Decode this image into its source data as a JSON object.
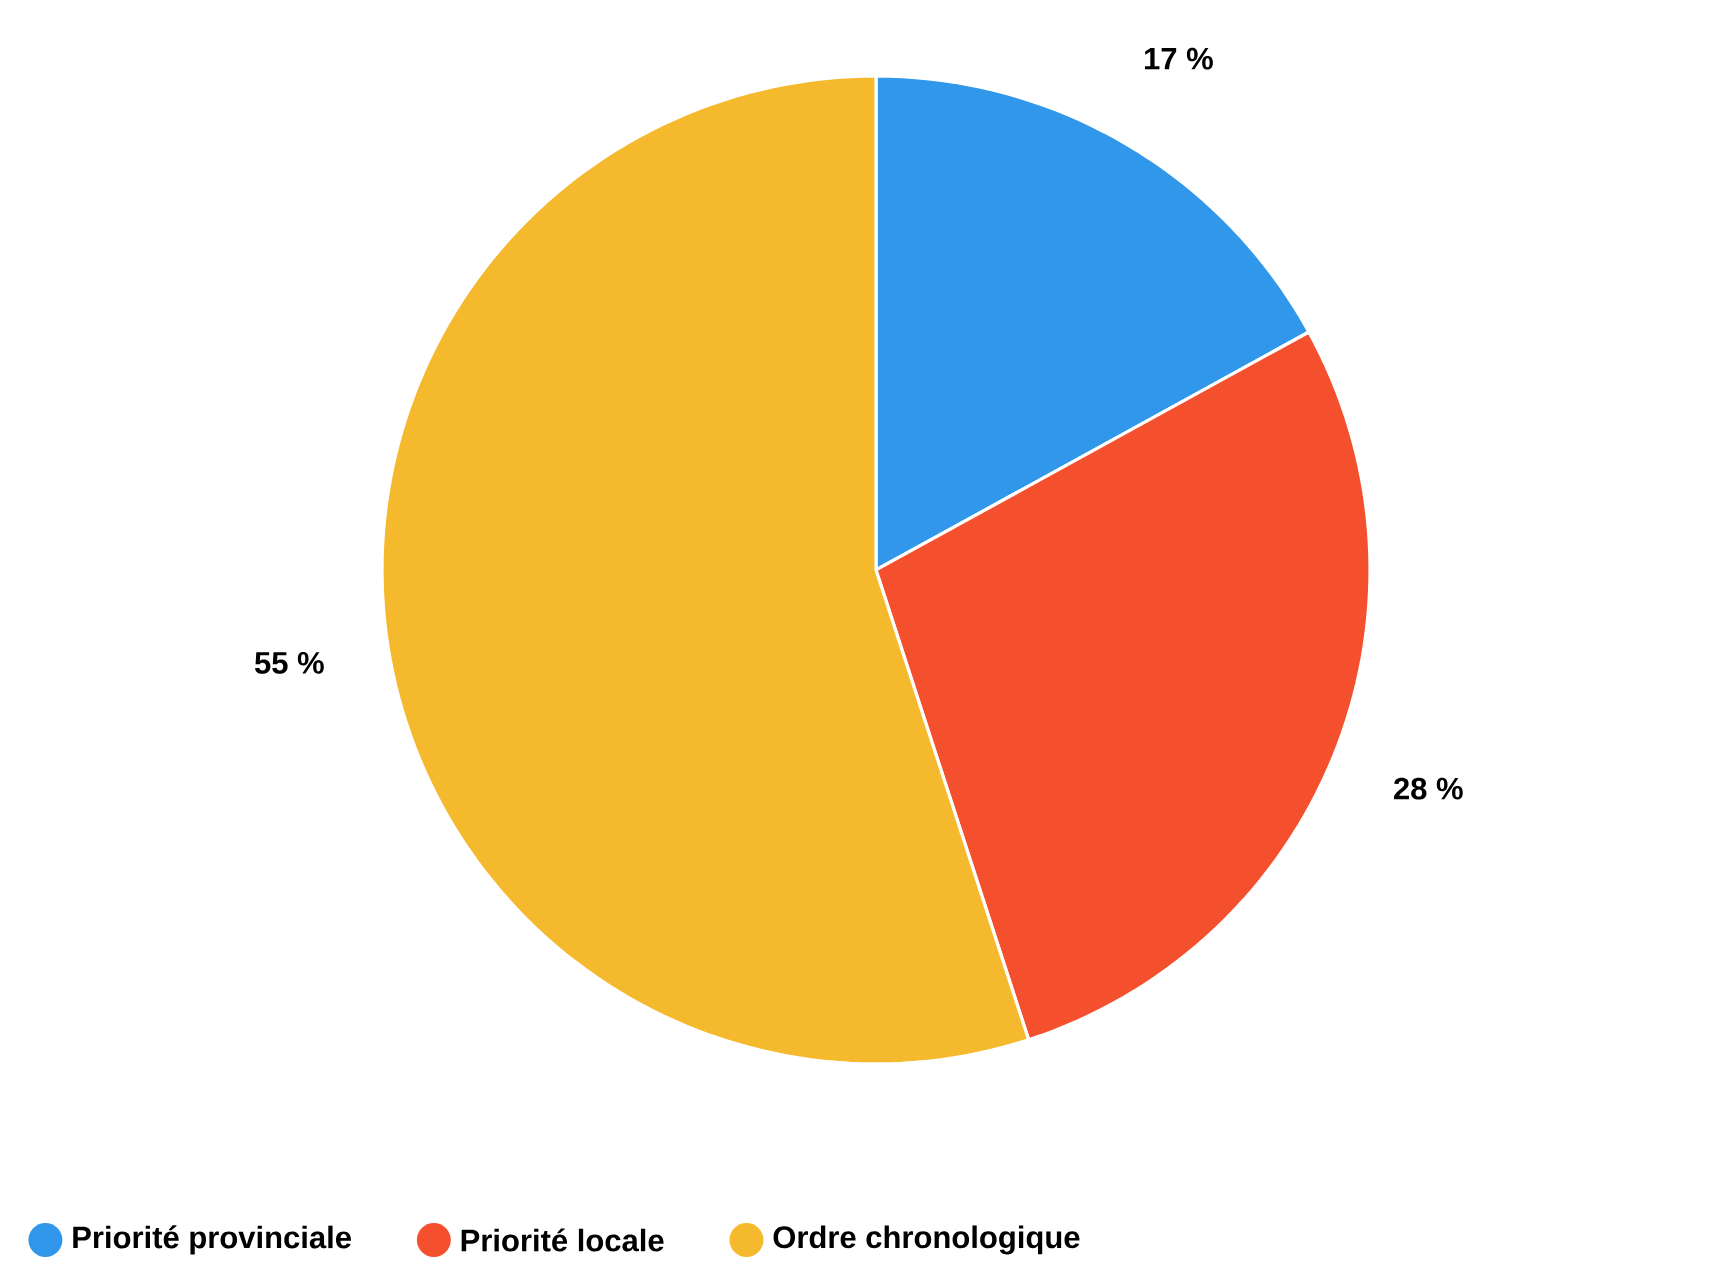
{
  "chart_data": {
    "type": "pie",
    "categories": [
      "Priorité provinciale",
      "Priorité locale",
      "Ordre chronologique"
    ],
    "values": [
      17,
      28,
      55
    ],
    "colors": [
      "#3097ea",
      "#f5502e",
      "#f5b92e"
    ],
    "value_labels": [
      "17 %",
      "28 %",
      "55 %"
    ],
    "legend": "bottom"
  }
}
